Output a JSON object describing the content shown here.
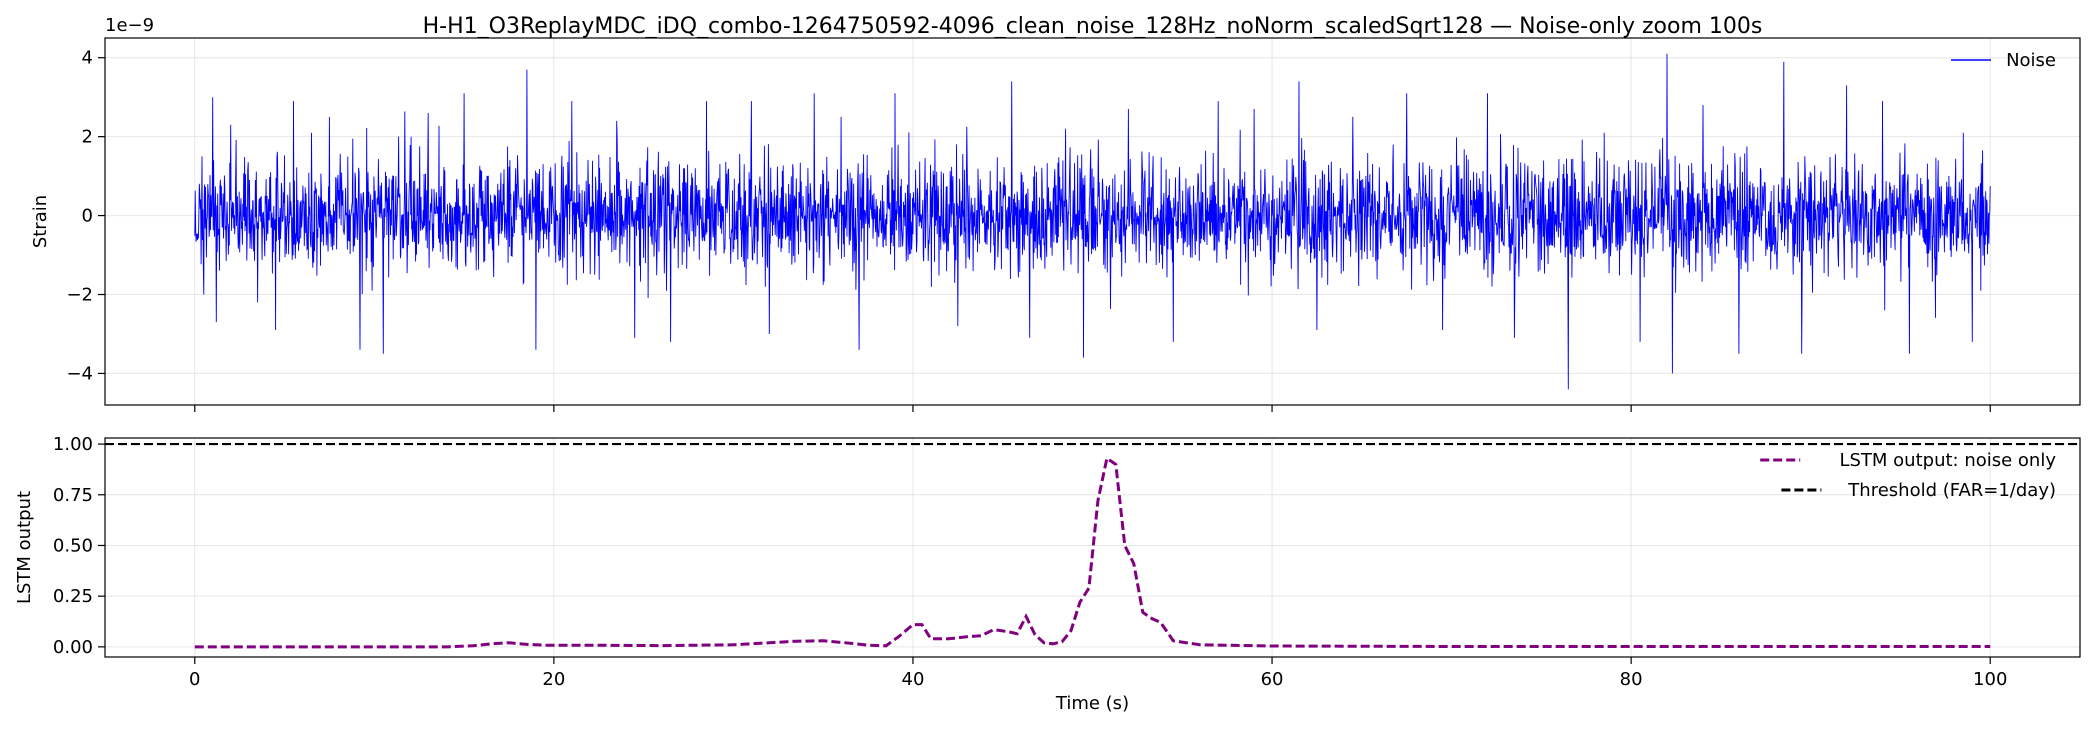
{
  "chart_data": [
    {
      "type": "line",
      "title": "H-H1_O3ReplayMDC_iDQ_combo-1264750592-4096_clean_noise_128Hz_noNorm_scaledSqrt128 — Noise-only zoom 100s",
      "ylabel": "Strain",
      "xlabel": "",
      "offset_text": "1e−9",
      "xlim": [
        -5,
        105
      ],
      "ylim": [
        -4.8,
        4.5
      ],
      "xticks": [
        0,
        20,
        40,
        60,
        80,
        100
      ],
      "yticks": [
        -4,
        -2,
        0,
        2,
        4
      ],
      "ytick_labels": [
        "−4",
        "−2",
        "0",
        "2",
        "4"
      ],
      "grid": true,
      "legend_position": "upper-right",
      "series": [
        {
          "name": "Noise",
          "color": "#0000ff",
          "style": "solid",
          "description_x_range": [
            0,
            100
          ],
          "typical_amplitude": [
            -2.0,
            2.0
          ],
          "peak_points": [
            {
              "x": 0.4,
              "y": 1.5
            },
            {
              "x": 0.5,
              "y": -2.0
            },
            {
              "x": 1.0,
              "y": 3.0
            },
            {
              "x": 1.2,
              "y": -2.7
            },
            {
              "x": 2.0,
              "y": 2.3
            },
            {
              "x": 3.5,
              "y": -2.2
            },
            {
              "x": 4.5,
              "y": -2.9
            },
            {
              "x": 6.5,
              "y": 2.1
            },
            {
              "x": 7.5,
              "y": 2.5
            },
            {
              "x": 9.2,
              "y": 3.4
            },
            {
              "x": 9.2,
              "y": -3.4
            },
            {
              "x": 10.5,
              "y": -3.5
            },
            {
              "x": 13.0,
              "y": 2.6
            },
            {
              "x": 15.0,
              "y": 3.1
            },
            {
              "x": 18.5,
              "y": 3.7
            },
            {
              "x": 19.0,
              "y": -3.4
            },
            {
              "x": 21.0,
              "y": 2.9
            },
            {
              "x": 23.5,
              "y": 2.4
            },
            {
              "x": 24.5,
              "y": -3.1
            },
            {
              "x": 26.5,
              "y": -3.2
            },
            {
              "x": 28.5,
              "y": 2.9
            },
            {
              "x": 31.0,
              "y": 2.9
            },
            {
              "x": 32.0,
              "y": -3.0
            },
            {
              "x": 34.5,
              "y": 3.1
            },
            {
              "x": 36.0,
              "y": 2.5
            },
            {
              "x": 37.0,
              "y": -3.4
            },
            {
              "x": 39.0,
              "y": 3.1
            },
            {
              "x": 42.5,
              "y": -2.8
            },
            {
              "x": 45.5,
              "y": 3.4
            },
            {
              "x": 46.5,
              "y": -3.1
            },
            {
              "x": 48.5,
              "y": 2.2
            },
            {
              "x": 49.5,
              "y": -3.6
            },
            {
              "x": 52.0,
              "y": 2.7
            },
            {
              "x": 54.5,
              "y": -3.2
            },
            {
              "x": 57.0,
              "y": 2.9
            },
            {
              "x": 59.0,
              "y": 2.7
            },
            {
              "x": 61.5,
              "y": 3.4
            },
            {
              "x": 62.5,
              "y": -2.9
            },
            {
              "x": 64.5,
              "y": 2.5
            },
            {
              "x": 67.5,
              "y": 3.1
            },
            {
              "x": 69.5,
              "y": -2.9
            },
            {
              "x": 72.0,
              "y": 3.1
            },
            {
              "x": 73.5,
              "y": -3.1
            },
            {
              "x": 76.5,
              "y": 2.6
            },
            {
              "x": 76.5,
              "y": -4.4
            },
            {
              "x": 78.5,
              "y": 2.1
            },
            {
              "x": 80.5,
              "y": -3.2
            },
            {
              "x": 82.0,
              "y": 4.1
            },
            {
              "x": 82.3,
              "y": -4.0
            },
            {
              "x": 84.0,
              "y": 2.8
            },
            {
              "x": 86.0,
              "y": -3.5
            },
            {
              "x": 88.5,
              "y": 3.9
            },
            {
              "x": 89.5,
              "y": -3.5
            },
            {
              "x": 92.0,
              "y": 3.3
            },
            {
              "x": 94.0,
              "y": 2.9
            },
            {
              "x": 95.5,
              "y": -3.5
            },
            {
              "x": 98.5,
              "y": 2.1
            },
            {
              "x": 99.0,
              "y": -3.2
            }
          ]
        }
      ]
    },
    {
      "type": "line",
      "title": "",
      "xlabel": "Time (s)",
      "ylabel": "LSTM output",
      "xlim": [
        -5,
        105
      ],
      "ylim": [
        -0.05,
        1.03
      ],
      "xticks": [
        0,
        20,
        40,
        60,
        80,
        100
      ],
      "yticks": [
        0.0,
        0.25,
        0.5,
        0.75,
        1.0
      ],
      "ytick_labels": [
        "0.00",
        "0.25",
        "0.50",
        "0.75",
        "1.00"
      ],
      "grid": true,
      "legend_position": "upper-right",
      "series": [
        {
          "name": "LSTM output: noise only",
          "color": "#800080",
          "style": "dashed",
          "x": [
            0,
            5,
            10,
            14,
            15.5,
            16.5,
            17.5,
            18.5,
            19.5,
            22,
            26,
            30,
            32,
            33.5,
            35,
            36.5,
            37.5,
            38.5,
            39.2,
            40,
            40.5,
            41,
            42,
            43,
            43.8,
            44.5,
            45.3,
            45.8,
            46.3,
            46.8,
            47.3,
            47.8,
            48.3,
            48.8,
            49.3,
            49.8,
            50.3,
            50.8,
            51.3,
            51.8,
            52.3,
            52.8,
            53.3,
            53.8,
            54.5,
            56,
            60,
            70,
            80,
            90,
            100
          ],
          "y": [
            0.0,
            0.0,
            0.0,
            0.0,
            0.005,
            0.015,
            0.02,
            0.012,
            0.008,
            0.008,
            0.006,
            0.01,
            0.02,
            0.028,
            0.03,
            0.018,
            0.008,
            0.005,
            0.05,
            0.11,
            0.11,
            0.04,
            0.04,
            0.05,
            0.055,
            0.085,
            0.075,
            0.065,
            0.15,
            0.06,
            0.02,
            0.015,
            0.025,
            0.08,
            0.22,
            0.29,
            0.72,
            0.93,
            0.9,
            0.5,
            0.41,
            0.17,
            0.14,
            0.12,
            0.03,
            0.01,
            0.004,
            0.002,
            0.002,
            0.002,
            0.002
          ]
        },
        {
          "name": "Threshold (FAR=1/day)",
          "color": "#000000",
          "style": "dashed",
          "y_constant": 1.0
        }
      ]
    }
  ]
}
